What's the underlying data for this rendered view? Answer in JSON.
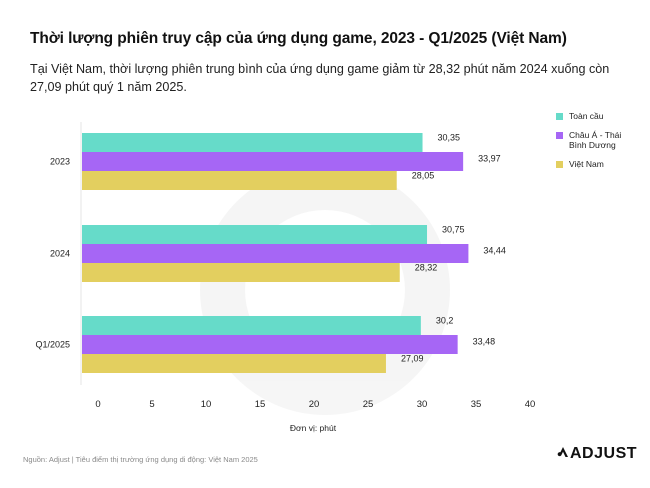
{
  "header": {
    "title": "Thời lượng phiên truy cập của ứng dụng game, 2023 - Q1/2025 (Việt Nam)",
    "subtitle": "Tại Việt Nam, thời lượng phiên trung bình của ứng dụng game giảm từ 28,32 phút năm 2024 xuống còn 27,09 phút quý 1 năm 2025."
  },
  "chart_data": {
    "type": "bar",
    "orientation": "horizontal",
    "title": "Thời lượng phiên truy cập của ứng dụng game, 2023 - Q1/2025 (Việt Nam)",
    "xlabel": "Đơn vị: phút",
    "ylabel": "",
    "categories": [
      "2023",
      "2024",
      "Q1/2025"
    ],
    "series": [
      {
        "name": "Toàn cầu",
        "color": "#66dbc9",
        "values": [
          30.35,
          30.75,
          30.2
        ],
        "labels": [
          "30,35",
          "30,75",
          "30,2"
        ]
      },
      {
        "name": "Châu Á - Thái Bình Dương",
        "color": "#a666f5",
        "values": [
          33.97,
          34.44,
          33.48
        ],
        "labels": [
          "33,97",
          "34,44",
          "33,48"
        ]
      },
      {
        "name": "Việt Nam",
        "color": "#e3cf5f",
        "values": [
          28.05,
          28.32,
          27.09
        ],
        "labels": [
          "28,05",
          "28,32",
          "27,09"
        ]
      }
    ],
    "xlim": [
      0,
      40
    ],
    "xticks": [
      "0",
      "5",
      "10",
      "15",
      "20",
      "25",
      "30",
      "35",
      "40"
    ],
    "grid": false,
    "legend_position": "right"
  },
  "footer": {
    "source": "Nguồn: Adjust | Tiêu điểm thị trường ứng dụng di động: Việt Nam 2025",
    "brand": "ADJUST",
    "brand_icon": "adjust-logo-icon"
  }
}
